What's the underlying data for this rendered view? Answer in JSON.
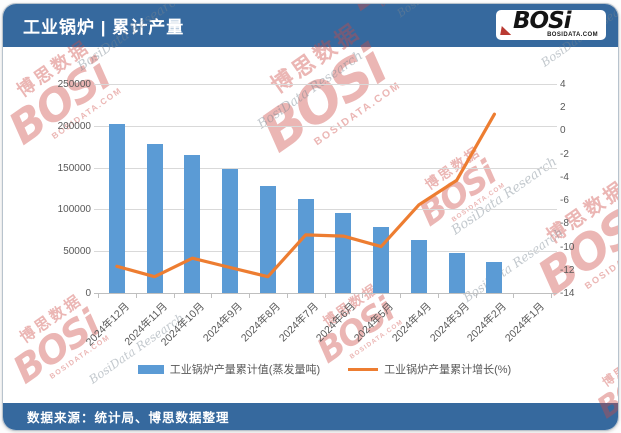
{
  "header": {
    "title": "工业锅炉 | 累计产量",
    "logo": {
      "text": "BOSi",
      "domain": "BOSIDATA.COM"
    }
  },
  "footer": {
    "source": "数据来源：统计局、博思数据整理"
  },
  "watermark": {
    "brand": "BOSi",
    "brand_cn": "博思数据",
    "domain": "BOSIDATA.COM",
    "research": "BosiData Research"
  },
  "colors": {
    "header_blue": "#36699e",
    "bar_blue": "#5b9bd5",
    "line_orange": "#ed7d31",
    "grid_gray": "#d9d9d9",
    "label_gray": "#595959"
  },
  "chart_data": {
    "type": "bar",
    "subtype": "bar+line combo, dual axis",
    "title": "工业锅炉 | 累计产量",
    "categories": [
      "2024年12月",
      "2024年11月",
      "2024年10月",
      "2024年9月",
      "2024年8月",
      "2024年7月",
      "2024年6月",
      "2024年5月",
      "2024年4月",
      "2024年3月",
      "2024年2月",
      "2024年1月"
    ],
    "series": [
      {
        "name": "工业锅炉产量累计值(蒸发量吨)",
        "type": "bar",
        "axis": "left",
        "color": "#5b9bd5",
        "values": [
          202000,
          178000,
          165000,
          148000,
          128000,
          113000,
          96000,
          79000,
          63000,
          48000,
          37000,
          null
        ]
      },
      {
        "name": "工业锅炉产量累计增长(%)",
        "type": "line",
        "axis": "right",
        "color": "#ed7d31",
        "values": [
          -11.7,
          -12.6,
          -11.0,
          -11.8,
          -12.6,
          -9.0,
          -9.1,
          -10.0,
          -6.4,
          -4.3,
          1.4,
          null
        ]
      }
    ],
    "left_axis": {
      "min": 0,
      "max": 250000,
      "ticks": [
        250000,
        200000,
        150000,
        100000,
        50000,
        0
      ]
    },
    "right_axis": {
      "min": -14,
      "max": 4,
      "ticks": [
        4,
        2,
        0,
        -2,
        -4,
        -6,
        -8,
        -10,
        -12,
        -14
      ]
    },
    "grid": true,
    "legend_position": "bottom"
  }
}
